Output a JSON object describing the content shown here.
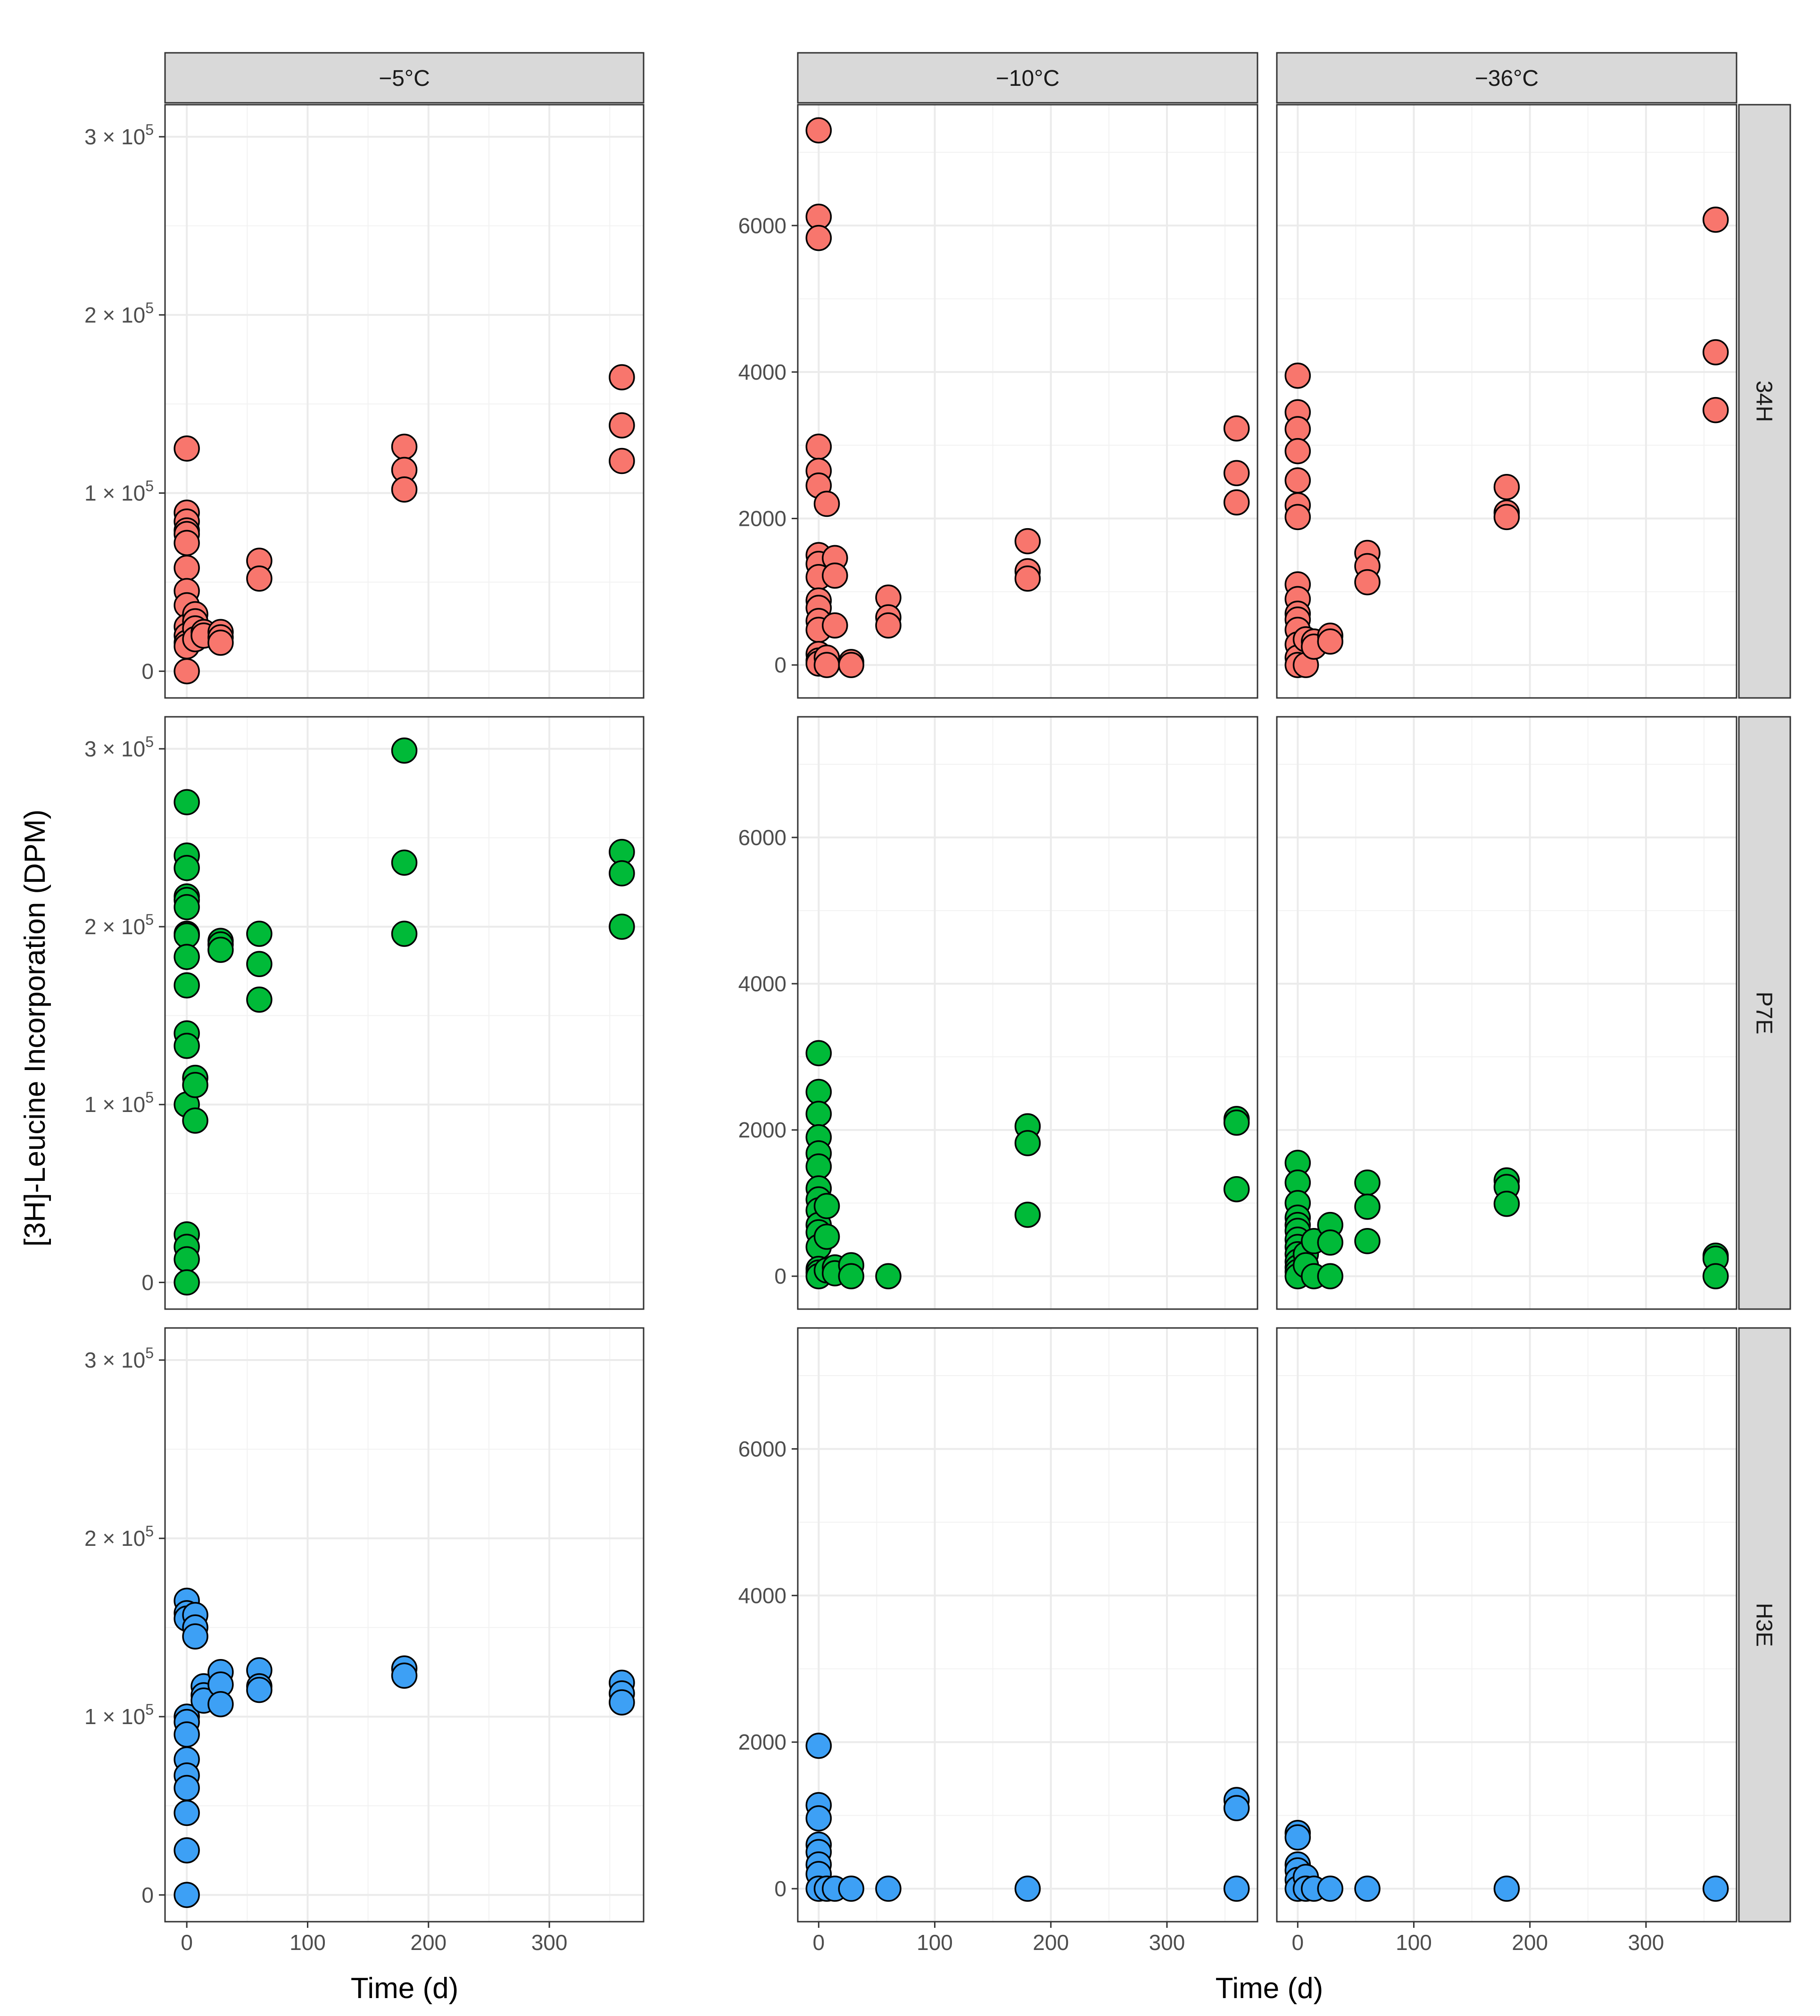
{
  "chart_data": {
    "type": "scatter",
    "xlabel": "Time (d)",
    "ylabel": "[3H]-Leucine Incorporation (DPM)",
    "columns": [
      "−5°C",
      "−10°C",
      "−36°C"
    ],
    "rows": [
      "34H",
      "P7E",
      "H3E"
    ],
    "colors": {
      "34H": "#F8766D",
      "P7E": "#00BA38",
      "H3E": "#3DA0F5"
    },
    "x_ticks": [
      0,
      100,
      200,
      300
    ],
    "xlim": [
      -18,
      378
    ],
    "left_panel": {
      "ylim": [
        -15000,
        318000
      ],
      "y_ticks": [
        0,
        100000,
        200000,
        300000
      ],
      "y_tick_labels": [
        "0",
        "1 × 10",
        "2 × 10",
        "3 × 10"
      ],
      "y_tick_exponent": "5"
    },
    "right_panel": {
      "ylim": [
        -450,
        7650
      ],
      "y_ticks": [
        0,
        2000,
        4000,
        6000
      ],
      "y_tick_labels": [
        "0",
        "2000",
        "4000",
        "6000"
      ]
    },
    "panels": [
      {
        "row": "34H",
        "col": "−5°C",
        "points": [
          [
            0,
            125000
          ],
          [
            0,
            89000
          ],
          [
            0,
            84000
          ],
          [
            0,
            79000
          ],
          [
            0,
            77000
          ],
          [
            0,
            72000
          ],
          [
            0,
            58000
          ],
          [
            0,
            45000
          ],
          [
            0,
            37000
          ],
          [
            0,
            25000
          ],
          [
            0,
            20000
          ],
          [
            0,
            16000
          ],
          [
            0,
            14000
          ],
          [
            0,
            0
          ],
          [
            7,
            32000
          ],
          [
            7,
            28000
          ],
          [
            7,
            24000
          ],
          [
            7,
            18000
          ],
          [
            14,
            22000
          ],
          [
            14,
            20000
          ],
          [
            28,
            22000
          ],
          [
            28,
            19000
          ],
          [
            28,
            16000
          ],
          [
            60,
            62000
          ],
          [
            60,
            52000
          ],
          [
            180,
            126000
          ],
          [
            180,
            113000
          ],
          [
            180,
            102000
          ],
          [
            360,
            165000
          ],
          [
            360,
            138000
          ],
          [
            360,
            118000
          ]
        ]
      },
      {
        "row": "34H",
        "col": "−10°C",
        "points": [
          [
            0,
            7300
          ],
          [
            0,
            6120
          ],
          [
            0,
            5830
          ],
          [
            0,
            2980
          ],
          [
            0,
            2650
          ],
          [
            0,
            2450
          ],
          [
            0,
            1500
          ],
          [
            0,
            1380
          ],
          [
            0,
            1200
          ],
          [
            0,
            880
          ],
          [
            0,
            780
          ],
          [
            0,
            600
          ],
          [
            0,
            480
          ],
          [
            0,
            150
          ],
          [
            0,
            60
          ],
          [
            0,
            20
          ],
          [
            7,
            2200
          ],
          [
            7,
            100
          ],
          [
            7,
            0
          ],
          [
            14,
            1460
          ],
          [
            14,
            1220
          ],
          [
            14,
            540
          ],
          [
            28,
            40
          ],
          [
            28,
            0
          ],
          [
            60,
            920
          ],
          [
            60,
            650
          ],
          [
            60,
            540
          ],
          [
            180,
            1690
          ],
          [
            180,
            1280
          ],
          [
            180,
            1180
          ],
          [
            360,
            3230
          ],
          [
            360,
            2620
          ],
          [
            360,
            2220
          ]
        ]
      },
      {
        "row": "34H",
        "col": "−36°C",
        "points": [
          [
            0,
            3950
          ],
          [
            0,
            3450
          ],
          [
            0,
            3220
          ],
          [
            0,
            2920
          ],
          [
            0,
            2520
          ],
          [
            0,
            2180
          ],
          [
            0,
            2020
          ],
          [
            0,
            1100
          ],
          [
            0,
            900
          ],
          [
            0,
            700
          ],
          [
            0,
            620
          ],
          [
            0,
            480
          ],
          [
            0,
            280
          ],
          [
            0,
            100
          ],
          [
            0,
            0
          ],
          [
            7,
            0
          ],
          [
            7,
            350
          ],
          [
            14,
            320
          ],
          [
            14,
            250
          ],
          [
            28,
            400
          ],
          [
            28,
            320
          ],
          [
            60,
            1530
          ],
          [
            60,
            1350
          ],
          [
            60,
            1130
          ],
          [
            180,
            2430
          ],
          [
            180,
            2080
          ],
          [
            180,
            2020
          ],
          [
            360,
            6080
          ],
          [
            360,
            4270
          ],
          [
            360,
            3480
          ]
        ]
      },
      {
        "row": "P7E",
        "col": "−5°C",
        "points": [
          [
            0,
            270000
          ],
          [
            0,
            240000
          ],
          [
            0,
            233000
          ],
          [
            0,
            217000
          ],
          [
            0,
            215000
          ],
          [
            0,
            211000
          ],
          [
            0,
            196000
          ],
          [
            0,
            195000
          ],
          [
            0,
            183000
          ],
          [
            0,
            167000
          ],
          [
            0,
            140000
          ],
          [
            0,
            133000
          ],
          [
            0,
            100000
          ],
          [
            0,
            27000
          ],
          [
            0,
            20000
          ],
          [
            0,
            13000
          ],
          [
            0,
            0
          ],
          [
            7,
            115000
          ],
          [
            7,
            111000
          ],
          [
            7,
            91000
          ],
          [
            28,
            192000
          ],
          [
            28,
            190000
          ],
          [
            28,
            187000
          ],
          [
            60,
            196000
          ],
          [
            60,
            179000
          ],
          [
            60,
            159000
          ],
          [
            180,
            299000
          ],
          [
            180,
            236000
          ],
          [
            180,
            196000
          ],
          [
            360,
            242000
          ],
          [
            360,
            230000
          ],
          [
            360,
            200000
          ]
        ]
      },
      {
        "row": "P7E",
        "col": "−10°C",
        "points": [
          [
            0,
            3050
          ],
          [
            0,
            2520
          ],
          [
            0,
            2220
          ],
          [
            0,
            1900
          ],
          [
            0,
            1680
          ],
          [
            0,
            1500
          ],
          [
            0,
            1200
          ],
          [
            0,
            1050
          ],
          [
            0,
            900
          ],
          [
            0,
            700
          ],
          [
            0,
            600
          ],
          [
            0,
            400
          ],
          [
            0,
            100
          ],
          [
            0,
            50
          ],
          [
            0,
            0
          ],
          [
            7,
            960
          ],
          [
            7,
            540
          ],
          [
            7,
            80
          ],
          [
            14,
            120
          ],
          [
            14,
            40
          ],
          [
            28,
            150
          ],
          [
            28,
            0
          ],
          [
            60,
            0
          ],
          [
            180,
            2050
          ],
          [
            180,
            1820
          ],
          [
            180,
            840
          ],
          [
            360,
            2150
          ],
          [
            360,
            2100
          ],
          [
            360,
            1190
          ]
        ]
      },
      {
        "row": "P7E",
        "col": "−36°C",
        "points": [
          [
            0,
            1550
          ],
          [
            0,
            1280
          ],
          [
            0,
            1000
          ],
          [
            0,
            800
          ],
          [
            0,
            700
          ],
          [
            0,
            620
          ],
          [
            0,
            500
          ],
          [
            0,
            400
          ],
          [
            0,
            300
          ],
          [
            0,
            200
          ],
          [
            0,
            120
          ],
          [
            0,
            60
          ],
          [
            0,
            0
          ],
          [
            7,
            300
          ],
          [
            7,
            150
          ],
          [
            14,
            480
          ],
          [
            14,
            0
          ],
          [
            28,
            700
          ],
          [
            28,
            460
          ],
          [
            28,
            0
          ],
          [
            60,
            1280
          ],
          [
            60,
            950
          ],
          [
            60,
            480
          ],
          [
            180,
            1310
          ],
          [
            180,
            1220
          ],
          [
            180,
            990
          ],
          [
            360,
            280
          ],
          [
            360,
            240
          ],
          [
            360,
            0
          ]
        ]
      },
      {
        "row": "H3E",
        "col": "−5°C",
        "points": [
          [
            0,
            165000
          ],
          [
            0,
            158000
          ],
          [
            0,
            155000
          ],
          [
            0,
            100000
          ],
          [
            0,
            97000
          ],
          [
            0,
            90000
          ],
          [
            0,
            76000
          ],
          [
            0,
            67000
          ],
          [
            0,
            60000
          ],
          [
            0,
            46000
          ],
          [
            0,
            25000
          ],
          [
            0,
            0
          ],
          [
            7,
            157000
          ],
          [
            7,
            150000
          ],
          [
            7,
            145000
          ],
          [
            14,
            117000
          ],
          [
            14,
            112000
          ],
          [
            14,
            109000
          ],
          [
            28,
            125000
          ],
          [
            28,
            118000
          ],
          [
            28,
            107000
          ],
          [
            60,
            126000
          ],
          [
            60,
            117000
          ],
          [
            60,
            115000
          ],
          [
            180,
            127000
          ],
          [
            180,
            123000
          ],
          [
            360,
            119000
          ],
          [
            360,
            113000
          ],
          [
            360,
            108000
          ]
        ]
      },
      {
        "row": "H3E",
        "col": "−10°C",
        "points": [
          [
            0,
            1950
          ],
          [
            0,
            1140
          ],
          [
            0,
            960
          ],
          [
            0,
            600
          ],
          [
            0,
            500
          ],
          [
            0,
            330
          ],
          [
            0,
            200
          ],
          [
            0,
            0
          ],
          [
            7,
            0
          ],
          [
            14,
            0
          ],
          [
            28,
            0
          ],
          [
            60,
            0
          ],
          [
            180,
            0
          ],
          [
            360,
            1210
          ],
          [
            360,
            1100
          ],
          [
            360,
            0
          ]
        ]
      },
      {
        "row": "H3E",
        "col": "−36°C",
        "points": [
          [
            0,
            760
          ],
          [
            0,
            700
          ],
          [
            0,
            330
          ],
          [
            0,
            250
          ],
          [
            0,
            120
          ],
          [
            0,
            0
          ],
          [
            7,
            160
          ],
          [
            7,
            0
          ],
          [
            14,
            0
          ],
          [
            28,
            0
          ],
          [
            60,
            0
          ],
          [
            180,
            0
          ],
          [
            360,
            0
          ]
        ]
      }
    ]
  }
}
